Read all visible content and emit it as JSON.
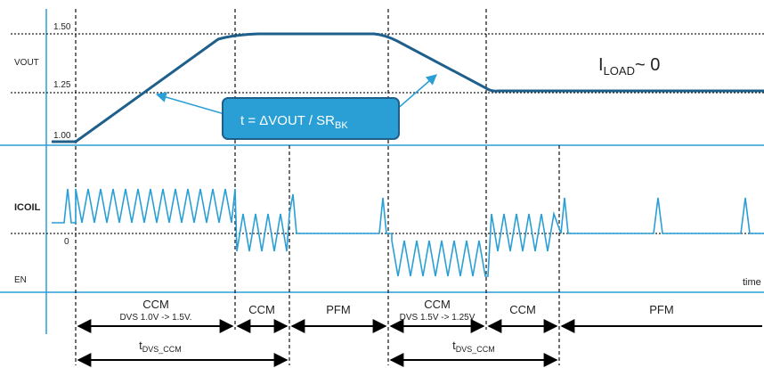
{
  "signals": {
    "vout": "VOUT",
    "icoil": "ICOIL",
    "en": "EN",
    "time": "time"
  },
  "vout_ticks": [
    "1.50",
    "1.25",
    "1.00"
  ],
  "icoil_zero": "0",
  "iload": {
    "main": "I",
    "sub": "LOAD",
    "suffix": "~ 0"
  },
  "callout": {
    "main": "t = ΔVOUT / SR",
    "sub": "BK"
  },
  "phases": [
    {
      "mode": "CCM",
      "note": "DVS 1.0V -> 1.5V."
    },
    {
      "mode": "CCM",
      "note": ""
    },
    {
      "mode": "PFM",
      "note": ""
    },
    {
      "mode": "CCM",
      "note": "DVS 1.5V -> 1.25V"
    },
    {
      "mode": "CCM",
      "note": ""
    },
    {
      "mode": "PFM",
      "note": ""
    }
  ],
  "durations": [
    {
      "main": "t",
      "sub": "DVS_CCM"
    },
    {
      "main": "t",
      "sub": "DVS_CCM"
    }
  ],
  "colors": {
    "signal": "#2a9fd6",
    "vout_line": "#1f5f8b",
    "callout_fill": "#2a9fd6",
    "callout_stroke": "#1f5f8b",
    "grid": "#222222"
  }
}
